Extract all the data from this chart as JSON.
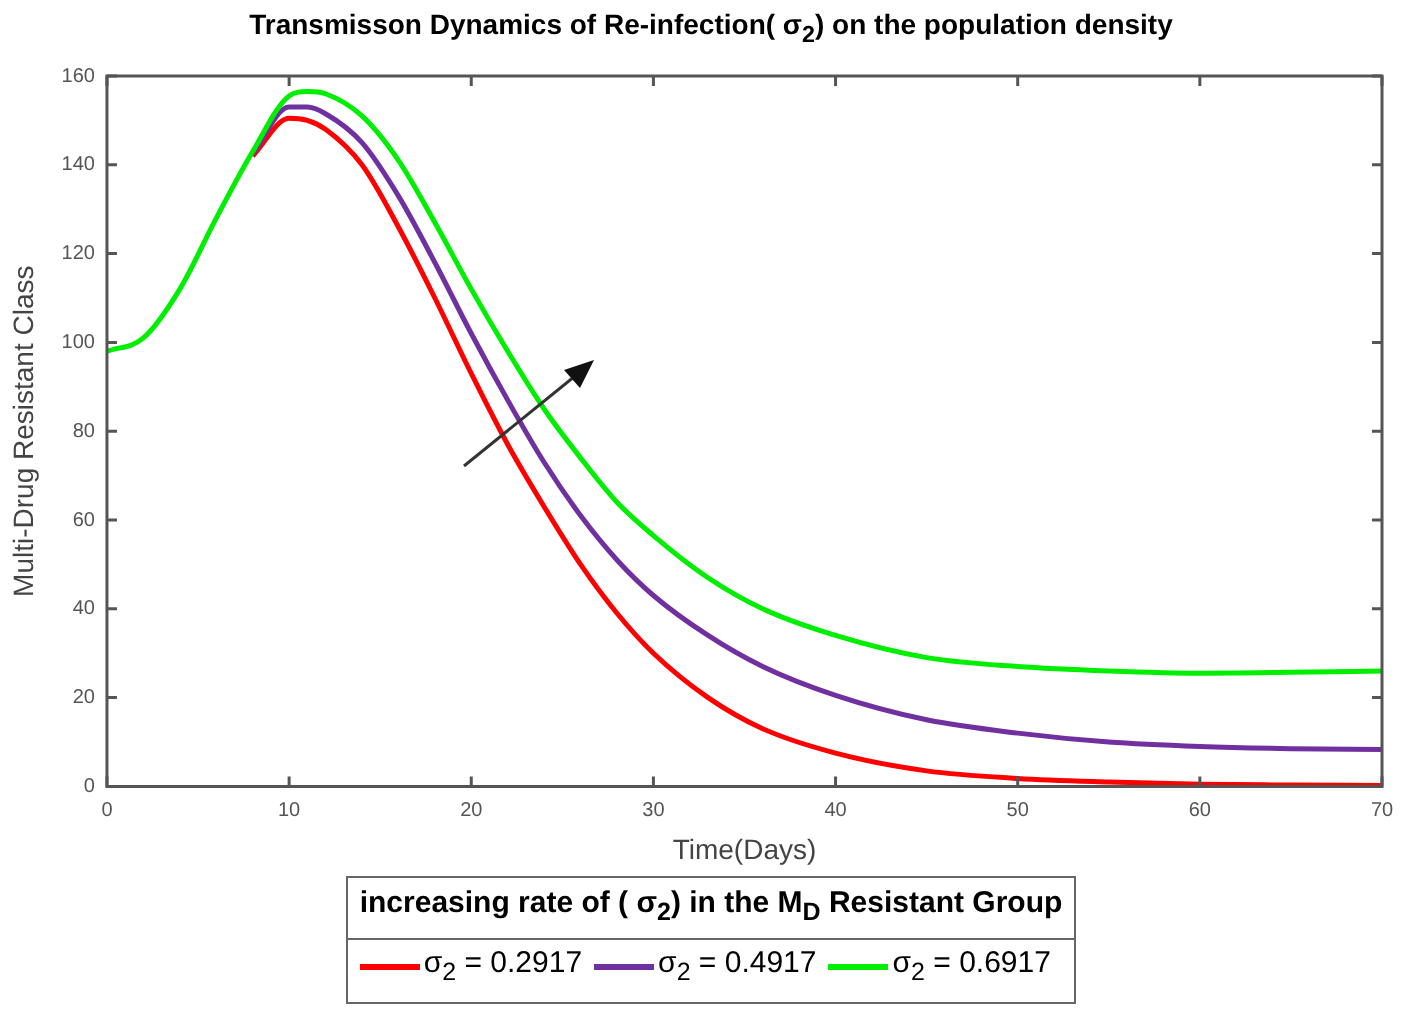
{
  "chart_data": {
    "type": "line",
    "title": "Transmisson Dynamics of Re-infection( σ$_{2}$) on the population density",
    "xlabel": "Time(Days)",
    "ylabel": "Multi-Drug Resistant Class",
    "legend_title": "increasing rate of ( σ$_{2}$) in the M$_{D}$ Resistant Group",
    "x": [
      0,
      2,
      4,
      6,
      8,
      10,
      11,
      12,
      14,
      16,
      18,
      20,
      22,
      24,
      26,
      28,
      30,
      33,
      36,
      40,
      45,
      50,
      55,
      60,
      65,
      70
    ],
    "series": [
      {
        "name": "σ$_{2}$ = 0.2917",
        "color": "#ff0000",
        "values": [
          null,
          null,
          null,
          null,
          142,
          150.5,
          150,
          148,
          140,
          126,
          110,
          93,
          77,
          63,
          50,
          39,
          30,
          20,
          13,
          7.5,
          3.5,
          1.8,
          1,
          0.5,
          0.3,
          0.2
        ]
      },
      {
        "name": "σ$_{2}$ = 0.4917",
        "color": "#7030a0",
        "values": [
          null,
          null,
          null,
          null,
          142.5,
          153,
          153,
          151.5,
          145,
          133,
          118,
          102,
          87,
          73,
          61,
          51,
          43,
          34,
          27,
          20.5,
          15,
          12,
          10,
          9,
          8.5,
          8.3
        ]
      },
      {
        "name": "σ$_{2}$ = 0.6917",
        "color": "#00ee00",
        "values": [
          98,
          101,
          112,
          128,
          143,
          155.5,
          156.5,
          156,
          151,
          141,
          127,
          112,
          98,
          85,
          74,
          64,
          56.5,
          47,
          40,
          34,
          29,
          27,
          26,
          25.5,
          25.7,
          26
        ]
      }
    ],
    "xlim": [
      0,
      70
    ],
    "xticks": [
      0,
      10,
      20,
      30,
      40,
      50,
      60,
      70
    ],
    "ylim": [
      0,
      160
    ],
    "yticks": [
      0,
      20,
      40,
      60,
      80,
      100,
      120,
      140,
      160
    ],
    "grid": false,
    "legend": "bottom",
    "marker": "none",
    "line_style": "solid"
  }
}
